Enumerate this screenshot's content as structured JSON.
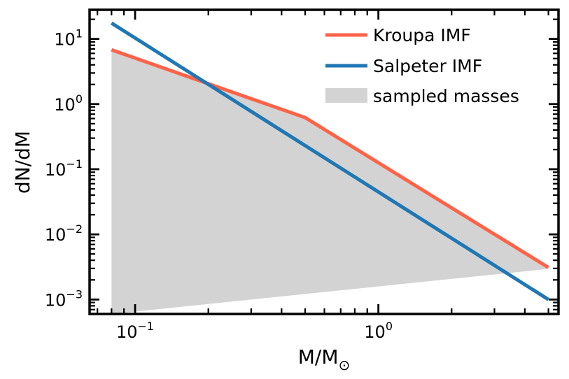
{
  "chart_data": {
    "type": "line",
    "xscale": "log",
    "yscale": "log",
    "xlim": [
      0.065,
      5.5
    ],
    "ylim": [
      0.0006,
      28
    ],
    "xlabel": "M/M",
    "xlabel_sub": "⊙",
    "ylabel": "dN/dM",
    "x_ticks": [
      {
        "value": 0.1,
        "base": "10",
        "exp": "−1"
      },
      {
        "value": 1,
        "base": "10",
        "exp": "0"
      }
    ],
    "y_ticks": [
      {
        "value": 0.001,
        "base": "10",
        "exp": "−3"
      },
      {
        "value": 0.01,
        "base": "10",
        "exp": "−2"
      },
      {
        "value": 0.1,
        "base": "10",
        "exp": "−1"
      },
      {
        "value": 1,
        "base": "10",
        "exp": "0"
      },
      {
        "value": 10,
        "base": "10",
        "exp": "1"
      }
    ],
    "legend_position": "top-right",
    "grid": false,
    "series": [
      {
        "name": "Kroupa IMF",
        "kind": "line",
        "color": "#ff6347",
        "x": [
          0.08,
          0.5,
          5.0
        ],
        "y": [
          6.8,
          0.62,
          0.0031
        ]
      },
      {
        "name": "Salpeter IMF",
        "kind": "line",
        "color": "#1f77b4",
        "x": [
          0.08,
          5.0
        ],
        "y": [
          17.5,
          0.001
        ]
      },
      {
        "name": "sampled masses",
        "kind": "histogram",
        "color": "#d3d3d3",
        "x": [
          0.08,
          0.5,
          1.5,
          2.5,
          3.5,
          5.0
        ],
        "y": [
          6.6,
          0.6,
          0.05,
          0.015,
          0.0075,
          0.0028
        ]
      }
    ]
  }
}
